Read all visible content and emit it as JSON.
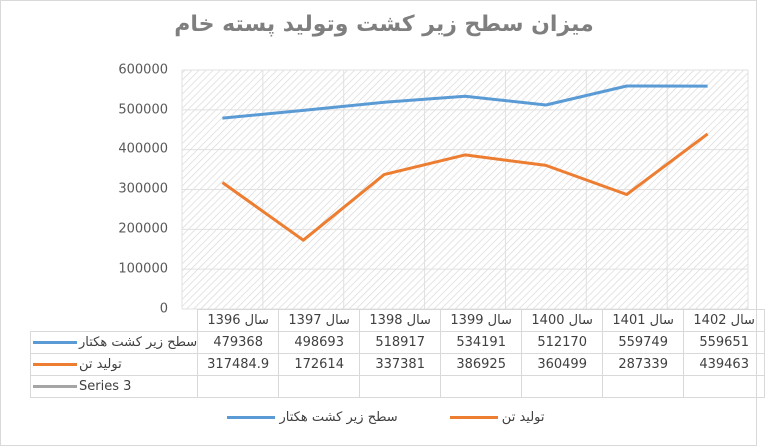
{
  "chart_data": {
    "type": "line",
    "title": "میزان سطح زیر کشت وتولید پسته خام",
    "categories": [
      "سال 1396",
      "سال 1397",
      "سال 1398",
      "سال 1399",
      "سال 1400",
      "سال 1401",
      "سال 1402"
    ],
    "series": [
      {
        "name": "سطح زیر کشت هکتار",
        "color": "#5b9bd5",
        "values": [
          479368,
          498693,
          518917,
          534191,
          512170,
          559749,
          559651
        ],
        "display": [
          "479368",
          "498693",
          "518917",
          "534191",
          "512170",
          "559749",
          "559651"
        ]
      },
      {
        "name": "تولید تن",
        "color": "#ed7d31",
        "values": [
          317484.9,
          172614,
          337381,
          386925,
          360499,
          287339,
          439463
        ],
        "display": [
          "317484.9",
          "172614",
          "337381",
          "386925",
          "360499",
          "287339",
          "439463"
        ]
      },
      {
        "name": "Series 3",
        "color": "#a5a5a5",
        "values": [
          null,
          null,
          null,
          null,
          null,
          null,
          null
        ],
        "display": [
          "",
          "",
          "",
          "",
          "",
          "",
          ""
        ]
      }
    ],
    "yticks": [
      "0",
      "100000",
      "200000",
      "300000",
      "400000",
      "500000",
      "600000"
    ],
    "ylim": [
      0,
      600000
    ],
    "xlabel": "",
    "ylabel": "",
    "grid": true,
    "data_table": true,
    "legend_position": "bottom",
    "legend": [
      "تولید تن",
      "سطح زیر کشت هکتار"
    ]
  }
}
